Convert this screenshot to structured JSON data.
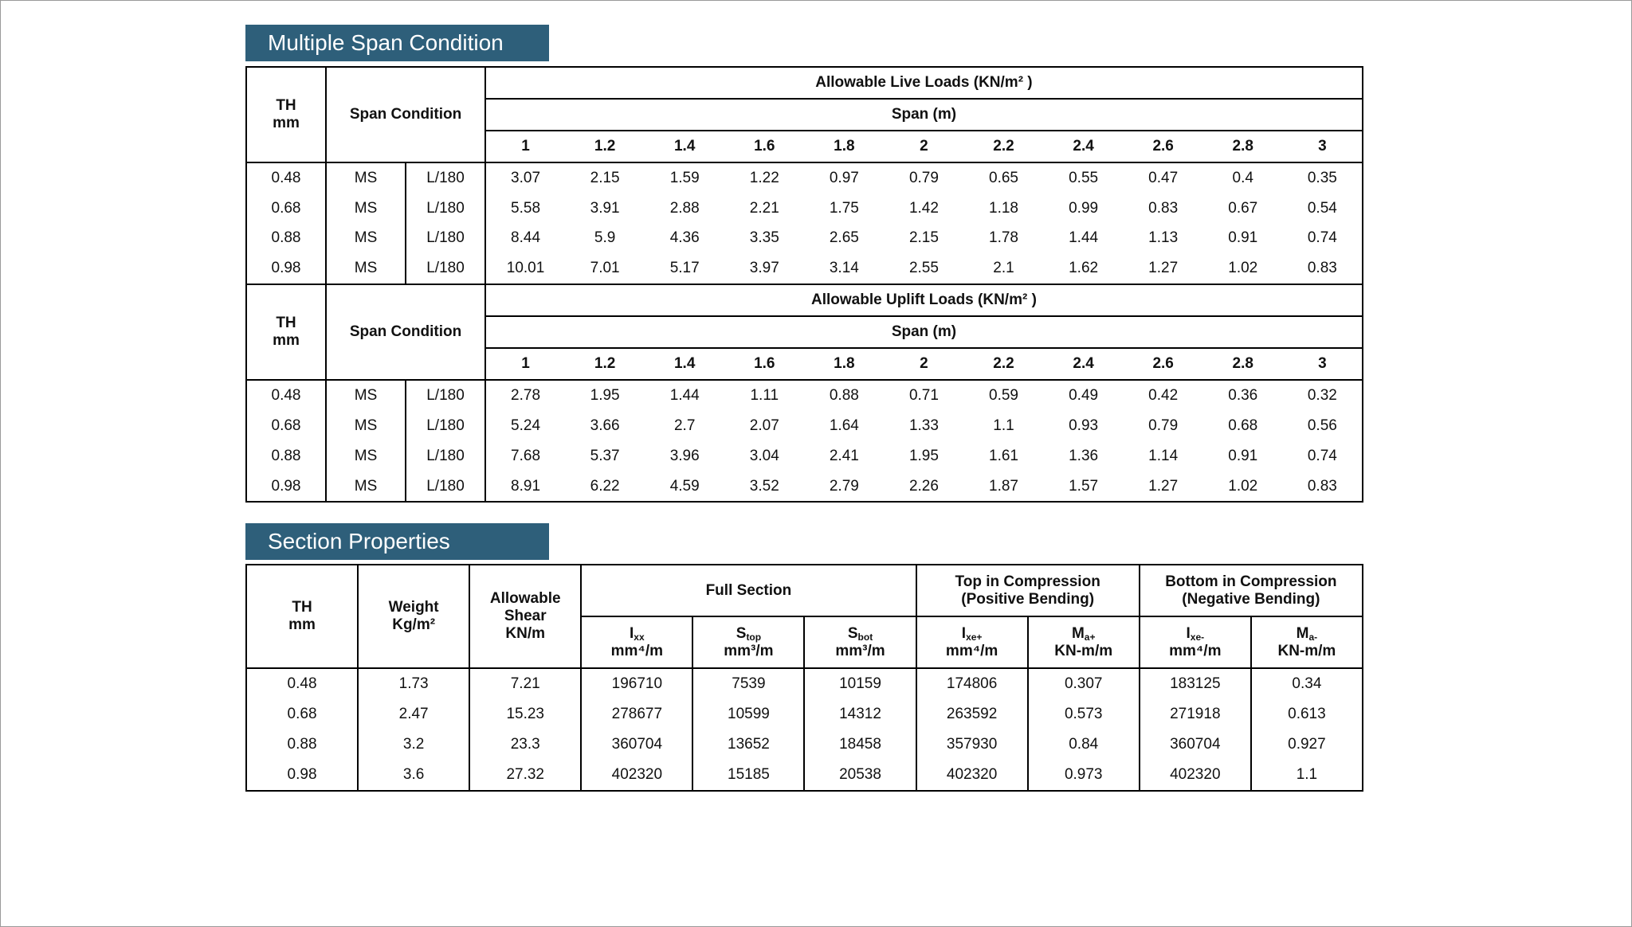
{
  "span_tables": {
    "title": "Multiple Span Condition",
    "blocks": [
      {
        "th_header": "TH\nmm",
        "span_condition_header": "Span Condition",
        "load_header": "Allowable Live Loads (KN/m² )",
        "span_header": "Span (m)",
        "spans": [
          1,
          1.2,
          1.4,
          1.6,
          1.8,
          2,
          2.2,
          2.4,
          2.6,
          2.8,
          3
        ],
        "rows": [
          [
            0.48,
            "MS",
            "L/180",
            3.07,
            2.15,
            1.59,
            1.22,
            0.97,
            0.79,
            0.65,
            0.55,
            0.47,
            0.4,
            0.35
          ],
          [
            0.68,
            "MS",
            "L/180",
            5.58,
            3.91,
            2.88,
            2.21,
            1.75,
            1.42,
            1.18,
            0.99,
            0.83,
            0.67,
            0.54
          ],
          [
            0.88,
            "MS",
            "L/180",
            8.44,
            5.9,
            4.36,
            3.35,
            2.65,
            2.15,
            1.78,
            1.44,
            1.13,
            0.91,
            0.74
          ],
          [
            0.98,
            "MS",
            "L/180",
            10.01,
            7.01,
            5.17,
            3.97,
            3.14,
            2.55,
            2.1,
            1.62,
            1.27,
            1.02,
            0.83
          ]
        ]
      },
      {
        "th_header": "TH\nmm",
        "span_condition_header": "Span Condition",
        "load_header": "Allowable Uplift Loads (KN/m² )",
        "span_header": "Span (m)",
        "spans": [
          1,
          1.2,
          1.4,
          1.6,
          1.8,
          2,
          2.2,
          2.4,
          2.6,
          2.8,
          3
        ],
        "rows": [
          [
            0.48,
            "MS",
            "L/180",
            2.78,
            1.95,
            1.44,
            1.11,
            0.88,
            0.71,
            0.59,
            0.49,
            0.42,
            0.36,
            0.32
          ],
          [
            0.68,
            "MS",
            "L/180",
            5.24,
            3.66,
            2.7,
            2.07,
            1.64,
            1.33,
            1.1,
            0.93,
            0.79,
            0.68,
            0.56
          ],
          [
            0.88,
            "MS",
            "L/180",
            7.68,
            5.37,
            3.96,
            3.04,
            2.41,
            1.95,
            1.61,
            1.36,
            1.14,
            0.91,
            0.74
          ],
          [
            0.98,
            "MS",
            "L/180",
            8.91,
            6.22,
            4.59,
            3.52,
            2.79,
            2.26,
            1.87,
            1.57,
            1.27,
            1.02,
            0.83
          ]
        ]
      }
    ]
  },
  "section_properties": {
    "title": "Section Properties",
    "th_header": "TH\nmm",
    "weight_header": "Weight\nKg/m²",
    "shear_header": "Allowable\nShear\nKN/m",
    "full_section_header": "Full Section",
    "top_header": "Top in Compression\n(Positive Bending)",
    "bottom_header": "Bottom in Compression\n(Negative Bending)",
    "sub_headers": [
      {
        "symbol": "I",
        "sub": "xx",
        "unit": "mm⁴/m"
      },
      {
        "symbol": "S",
        "sub": "top",
        "unit": "mm³/m"
      },
      {
        "symbol": "S",
        "sub": "bot",
        "unit": "mm³/m"
      },
      {
        "symbol": "I",
        "sub": "xe+",
        "unit": "mm⁴/m"
      },
      {
        "symbol": "M",
        "sub": "a+",
        "unit": "KN-m/m"
      },
      {
        "symbol": "I",
        "sub": "xe-",
        "unit": "mm⁴/m"
      },
      {
        "symbol": "M",
        "sub": "a-",
        "unit": "KN-m/m"
      }
    ],
    "rows": [
      [
        0.48,
        1.73,
        7.21,
        196710,
        7539,
        10159,
        174806,
        0.307,
        183125,
        0.34
      ],
      [
        0.68,
        2.47,
        15.23,
        278677,
        10599,
        14312,
        263592,
        0.573,
        271918,
        0.613
      ],
      [
        0.88,
        3.2,
        23.3,
        360704,
        13652,
        18458,
        357930,
        0.84,
        360704,
        0.927
      ],
      [
        0.98,
        3.6,
        27.32,
        402320,
        15185,
        20538,
        402320,
        0.973,
        402320,
        1.1
      ]
    ]
  }
}
